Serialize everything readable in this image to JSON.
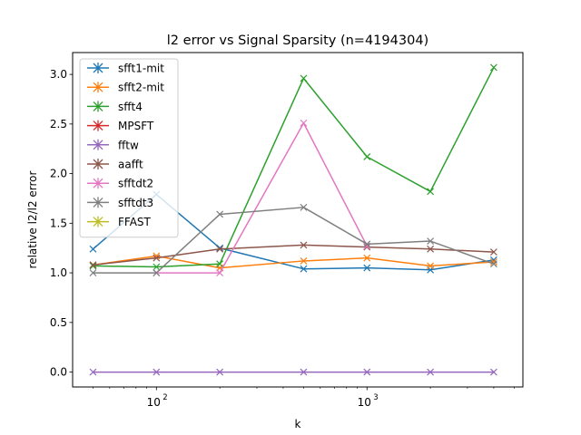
{
  "chart_data": {
    "type": "line",
    "title": "l2 error vs Signal Sparsity (n=4194304)",
    "xlabel": "k",
    "ylabel": "relative l2/l2 error",
    "xscale": "log",
    "xlim": [
      40,
      5500
    ],
    "ylim": [
      -0.15,
      3.22
    ],
    "xticks": [
      {
        "value": 100,
        "label": "10",
        "exp": "2"
      },
      {
        "value": 1000,
        "label": "10",
        "exp": "3"
      }
    ],
    "yticks": [
      "0.0",
      "0.5",
      "1.0",
      "1.5",
      "2.0",
      "2.5",
      "3.0"
    ],
    "legend_position": "upper-left",
    "grid": false,
    "x": [
      50,
      100,
      200,
      500,
      1000,
      2000,
      4000
    ],
    "series": [
      {
        "name": "sfft1-mit",
        "color": "#1f77b4",
        "values": [
          1.24,
          1.79,
          1.25,
          1.04,
          1.05,
          1.03,
          1.13
        ]
      },
      {
        "name": "sfft2-mit",
        "color": "#ff7f0e",
        "values": [
          1.08,
          1.17,
          1.05,
          1.12,
          1.15,
          1.07,
          1.11
        ]
      },
      {
        "name": "sfft4",
        "color": "#2ca02c",
        "values": [
          1.07,
          1.06,
          1.09,
          2.96,
          2.17,
          1.82,
          3.07
        ]
      },
      {
        "name": "MPSFT",
        "color": "#d62728",
        "values": [
          null,
          null,
          null,
          null,
          null,
          null,
          null
        ]
      },
      {
        "name": "fftw",
        "color": "#9467bd",
        "values": [
          0.0,
          0.0,
          0.0,
          0.0,
          0.0,
          0.0,
          0.0
        ]
      },
      {
        "name": "aafft",
        "color": "#8c564b",
        "values": [
          1.08,
          1.15,
          1.24,
          1.28,
          1.26,
          1.24,
          1.21
        ]
      },
      {
        "name": "sfftdt2",
        "color": "#e377c2",
        "values": [
          null,
          1.0,
          1.0,
          2.51,
          1.27,
          null,
          null
        ]
      },
      {
        "name": "sfftdt3",
        "color": "#7f7f7f",
        "values": [
          1.0,
          1.0,
          1.59,
          1.66,
          1.29,
          1.32,
          1.09
        ]
      },
      {
        "name": "FFAST",
        "color": "#bcbd22",
        "values": [
          null,
          null,
          null,
          null,
          null,
          null,
          null
        ]
      }
    ]
  }
}
